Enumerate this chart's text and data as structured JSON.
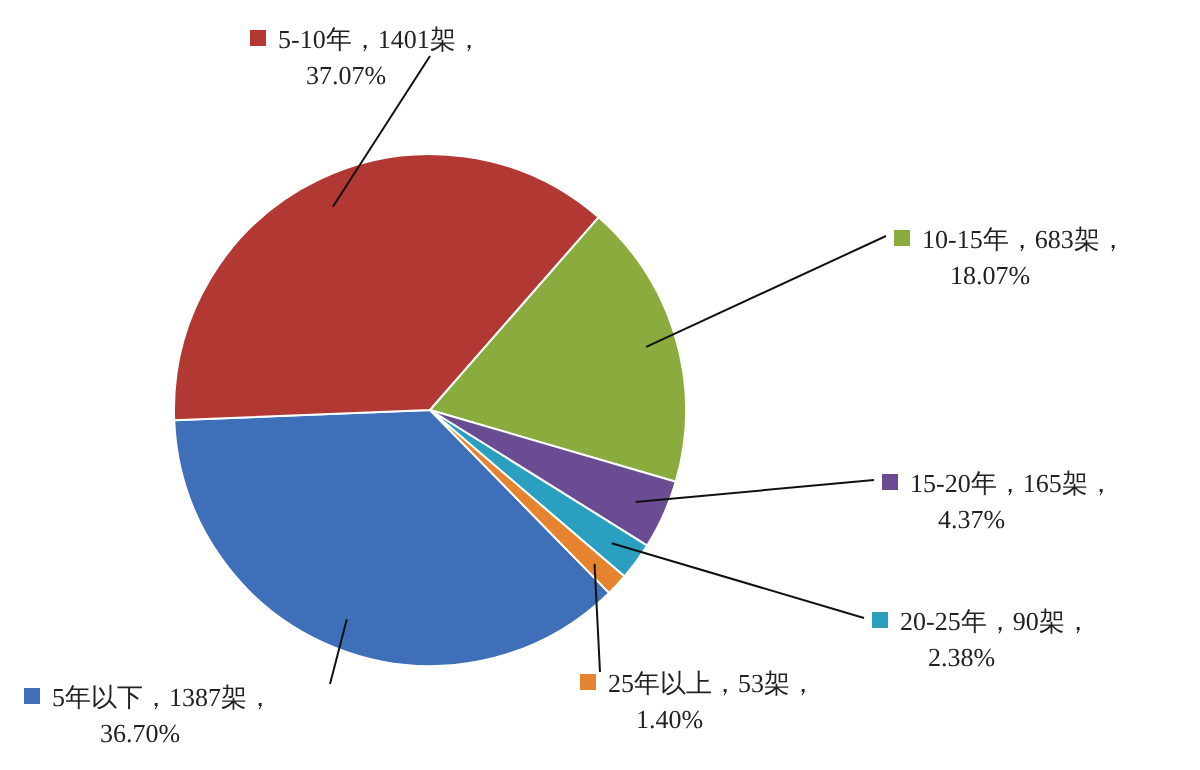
{
  "chart_data": {
    "type": "pie",
    "categories": [
      "5年以下",
      "5-10年",
      "10-15年",
      "15-20年",
      "20-25年",
      "25年以上"
    ],
    "values": [
      1387,
      1401,
      683,
      165,
      90,
      53
    ],
    "value_labels": [
      "1387架，36.70%",
      "1401架，37.07%",
      "683架，18.07%",
      "165架，4.37%",
      "90架，2.38%",
      "53架，1.40%"
    ],
    "colors": [
      "#3f6fb8",
      "#b23834",
      "#8aab3d",
      "#6a4c93",
      "#2b9fbf",
      "#e5832f"
    ],
    "legend": "right"
  }
}
